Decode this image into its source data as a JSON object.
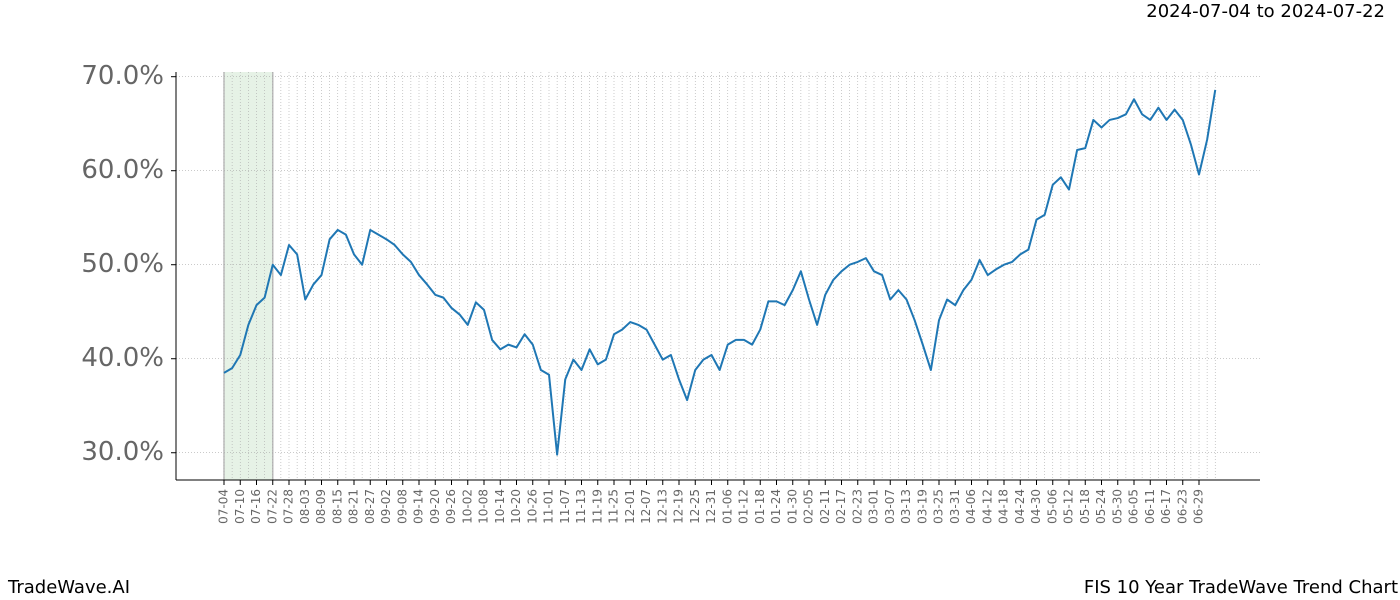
{
  "chart_data": {
    "type": "line",
    "subtitle": "2024-07-04 to 2024-07-22",
    "footer_left": "TradeWave.AI",
    "footer_right": "FIS 10 Year TradeWave Trend Chart",
    "highlight_start": "07-04",
    "highlight_end": "07-22",
    "categories": [
      "07-04",
      null,
      "07-10",
      null,
      "07-16",
      null,
      "07-22",
      null,
      "07-28",
      null,
      "08-03",
      null,
      "08-09",
      null,
      "08-15",
      null,
      "08-21",
      null,
      "08-27",
      null,
      "09-02",
      null,
      "09-08",
      null,
      "09-14",
      null,
      "09-20",
      null,
      "09-26",
      null,
      "10-02",
      null,
      "10-08",
      null,
      "10-14",
      null,
      "10-20",
      null,
      "10-26",
      null,
      "11-01",
      null,
      "11-07",
      null,
      "11-13",
      null,
      "11-19",
      null,
      "11-25",
      null,
      "12-01",
      null,
      "12-07",
      null,
      "12-13",
      null,
      "12-19",
      null,
      "12-25",
      null,
      "12-31",
      null,
      "01-06",
      null,
      "01-12",
      null,
      "01-18",
      null,
      "01-24",
      null,
      "01-30",
      null,
      "02-05",
      null,
      "02-11",
      null,
      "02-17",
      null,
      "02-23",
      null,
      "03-01",
      null,
      "03-07",
      null,
      "03-13",
      null,
      "03-19",
      null,
      "03-25",
      null,
      "03-31",
      null,
      "04-06",
      null,
      "04-12",
      null,
      "04-18",
      null,
      "04-24",
      null,
      "04-30",
      null,
      "05-06",
      null,
      "05-12",
      null,
      "05-18",
      null,
      "05-24",
      null,
      "05-30",
      null,
      "06-05",
      null,
      "06-11",
      null,
      "06-17",
      null,
      "06-23",
      null,
      "06-29",
      null,
      null
    ],
    "series": [
      {
        "color": "#1f77b4",
        "values": [
          38.5,
          39.0,
          40.4,
          43.6,
          45.7,
          46.5,
          50.0,
          48.9,
          52.1,
          51.1,
          46.3,
          47.9,
          48.9,
          52.7,
          53.7,
          53.2,
          51.1,
          50.0,
          53.7,
          53.2,
          52.7,
          52.1,
          51.1,
          50.3,
          48.9,
          47.9,
          46.8,
          46.5,
          45.4,
          44.7,
          43.6,
          46.0,
          45.2,
          42.0,
          41.0,
          41.5,
          41.2,
          42.6,
          41.5,
          38.8,
          38.3,
          29.8,
          37.8,
          39.9,
          38.8,
          41.0,
          39.4,
          39.9,
          42.6,
          43.1,
          43.9,
          43.6,
          43.1,
          41.5,
          39.9,
          40.4,
          37.8,
          35.6,
          38.8,
          39.9,
          40.4,
          38.8,
          41.5,
          42.0,
          42.0,
          41.5,
          43.1,
          46.1,
          46.1,
          45.7,
          47.3,
          49.3,
          46.3,
          43.6,
          46.8,
          48.4,
          49.3,
          50.0,
          50.3,
          50.7,
          49.3,
          48.9,
          46.3,
          47.3,
          46.3,
          44.1,
          41.5,
          38.8,
          44.1,
          46.3,
          45.7,
          47.3,
          48.4,
          50.5,
          48.9,
          49.5,
          50.0,
          50.3,
          51.1,
          51.6,
          54.8,
          55.3,
          58.5,
          59.3,
          58.0,
          62.2,
          62.4,
          65.4,
          64.6,
          65.4,
          65.6,
          66.0,
          67.6,
          66.0,
          65.4,
          66.7,
          65.4,
          66.5,
          65.4,
          62.8,
          59.6,
          63.3,
          68.6
        ]
      }
    ],
    "ylim": [
      27.1,
      70.5
    ],
    "yticks": [
      {
        "value": 30,
        "label": "30.0%"
      },
      {
        "value": 40,
        "label": "40.0%"
      },
      {
        "value": 50,
        "label": "50.0%"
      },
      {
        "value": 60,
        "label": "60.0%"
      },
      {
        "value": 70,
        "label": "70.0%"
      }
    ],
    "grid": true
  }
}
